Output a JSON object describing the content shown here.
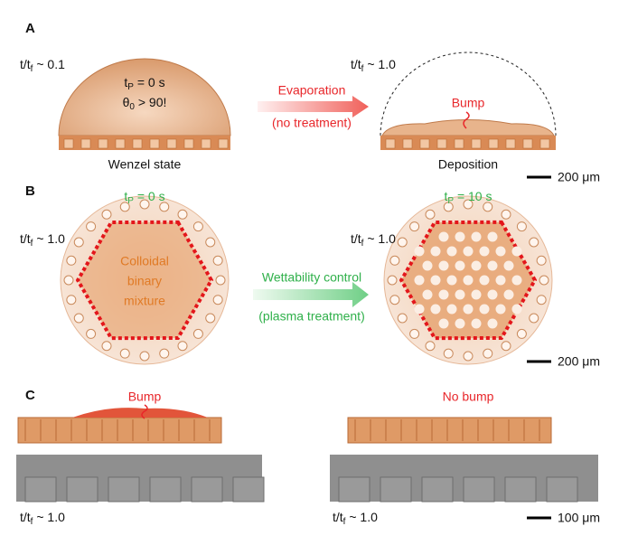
{
  "panel_a": {
    "label": "A",
    "left_time": [
      "t/t",
      "f",
      " ~ 0.1"
    ],
    "plasma_time": [
      "t",
      "P",
      " = 0 s"
    ],
    "angle": [
      "θ",
      "0",
      " > 90!"
    ],
    "left_caption": "Wenzel state",
    "arrow_top": "Evaporation",
    "arrow_bottom": "(no treatment)",
    "right_time": [
      "t/t",
      "f",
      " ~ 1.0"
    ],
    "bump": "Bump",
    "right_caption": "Deposition",
    "scale": "200 μm"
  },
  "panel_b": {
    "label": "B",
    "left_plasma": [
      "t",
      "P",
      " = 0 s"
    ],
    "left_time": [
      "t/t",
      "f",
      " ~ 1.0"
    ],
    "mixture": [
      "Colloidal",
      "binary",
      "mixture"
    ],
    "arrow_top": "Wettability control",
    "arrow_bottom": "(plasma treatment)",
    "right_plasma": [
      "t",
      "P",
      " = 10 s"
    ],
    "right_time": [
      "t/t",
      "f",
      " ~ 1.0"
    ],
    "scale": "200 μm"
  },
  "panel_c": {
    "label": "C",
    "left_title": "Bump",
    "right_title": "No bump",
    "left_time": [
      "t/t",
      "f",
      " ~ 1.0"
    ],
    "right_time": [
      "t/t",
      "f",
      " ~ 1.0"
    ],
    "scale": "100 μm"
  }
}
